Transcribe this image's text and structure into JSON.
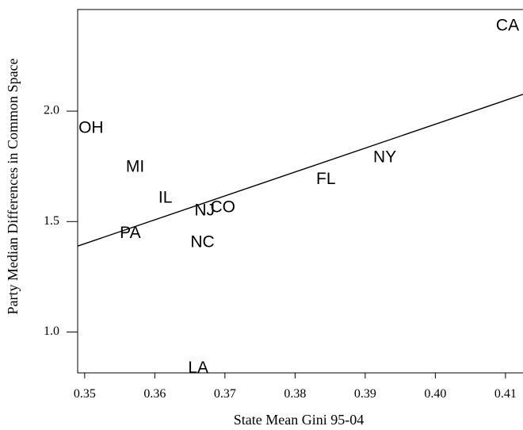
{
  "chart_data": {
    "type": "scatter",
    "title": "",
    "xlabel": "State Mean Gini 95-04",
    "ylabel": "Party Median Differences in Common Space",
    "xlim": [
      0.349,
      0.4125
    ],
    "ylim": [
      0.815,
      2.46
    ],
    "xticks": [
      {
        "value": 0.35,
        "label": "0.35"
      },
      {
        "value": 0.36,
        "label": "0.36"
      },
      {
        "value": 0.37,
        "label": "0.37"
      },
      {
        "value": 0.38,
        "label": "0.38"
      },
      {
        "value": 0.39,
        "label": "0.39"
      },
      {
        "value": 0.4,
        "label": "0.40"
      },
      {
        "value": 0.41,
        "label": "0.41"
      }
    ],
    "yticks": [
      {
        "value": 1.0,
        "label": "1.0"
      },
      {
        "value": 1.5,
        "label": "1.5"
      },
      {
        "value": 2.0,
        "label": "2.0"
      }
    ],
    "grid": false,
    "legend": "none",
    "points": [
      {
        "label": "CA",
        "x": 0.4103,
        "y": 2.385
      },
      {
        "label": "OH",
        "x": 0.3509,
        "y": 1.922
      },
      {
        "label": "MI",
        "x": 0.3572,
        "y": 1.745
      },
      {
        "label": "NY",
        "x": 0.3928,
        "y": 1.788
      },
      {
        "label": "FL",
        "x": 0.3844,
        "y": 1.689
      },
      {
        "label": "IL",
        "x": 0.3615,
        "y": 1.606
      },
      {
        "label": "NJ",
        "x": 0.3671,
        "y": 1.547
      },
      {
        "label": "CO",
        "x": 0.3697,
        "y": 1.563
      },
      {
        "label": "PA",
        "x": 0.3565,
        "y": 1.446
      },
      {
        "label": "NC",
        "x": 0.3668,
        "y": 1.404
      },
      {
        "label": "LA",
        "x": 0.3662,
        "y": 0.835
      }
    ],
    "fit_line": {
      "x": [
        0.349,
        0.4125
      ],
      "y": [
        1.389,
        2.076
      ]
    }
  }
}
